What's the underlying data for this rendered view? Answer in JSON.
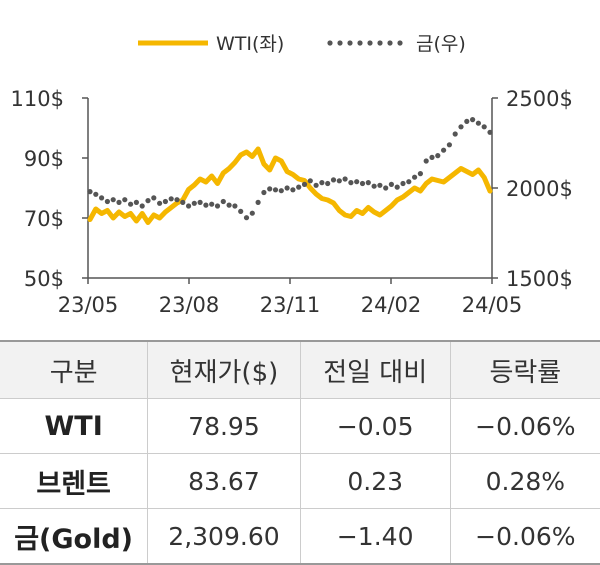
{
  "chart_data": {
    "type": "line",
    "x_ticks": [
      "23/05",
      "23/08",
      "23/11",
      "24/02",
      "24/05"
    ],
    "left_axis": {
      "ticks": [
        "110$",
        "90$",
        "70$",
        "50$"
      ],
      "range": [
        50,
        110
      ]
    },
    "right_axis": {
      "ticks": [
        "2500$",
        "2000$",
        "1500$"
      ],
      "range": [
        1500,
        2500
      ]
    },
    "legend_position": "top",
    "series": [
      {
        "name": "WTI(좌)",
        "axis": "left",
        "color": "#F5B700",
        "style": "solid",
        "values": [
          69.5,
          73.0,
          71.5,
          72.5,
          70.0,
          72.0,
          70.5,
          71.5,
          69.0,
          71.5,
          68.5,
          71.0,
          70.0,
          72.0,
          73.5,
          75.0,
          76.0,
          79.5,
          81.0,
          83.0,
          82.0,
          84.0,
          81.5,
          85.0,
          86.5,
          88.5,
          91.0,
          92.0,
          90.5,
          93.0,
          88.0,
          86.0,
          90.0,
          89.0,
          85.5,
          84.5,
          83.0,
          82.5,
          80.0,
          78.0,
          76.5,
          76.0,
          75.0,
          72.5,
          71.0,
          70.5,
          72.5,
          71.5,
          73.5,
          72.0,
          71.0,
          72.5,
          74.0,
          76.0,
          77.0,
          78.5,
          80.0,
          79.0,
          81.5,
          83.0,
          82.5,
          82.0,
          83.5,
          85.0,
          86.5,
          85.5,
          84.5,
          86.0,
          83.5,
          78.95
        ]
      },
      {
        "name": "금(우)",
        "axis": "right",
        "color": "#555555",
        "style": "dotted",
        "values": [
          1980,
          1965,
          1945,
          1925,
          1935,
          1920,
          1935,
          1910,
          1920,
          1900,
          1930,
          1945,
          1915,
          1925,
          1940,
          1935,
          1920,
          1900,
          1915,
          1920,
          1905,
          1910,
          1900,
          1925,
          1905,
          1900,
          1870,
          1835,
          1860,
          1920,
          1975,
          1995,
          1990,
          1985,
          2000,
          1990,
          2005,
          2020,
          2040,
          2015,
          2030,
          2025,
          2045,
          2040,
          2050,
          2030,
          2035,
          2025,
          2030,
          2010,
          2015,
          2000,
          2020,
          2005,
          2025,
          2035,
          2060,
          2080,
          2150,
          2170,
          2180,
          2210,
          2240,
          2300,
          2340,
          2370,
          2380,
          2360,
          2340,
          2309.6
        ]
      }
    ]
  },
  "table": {
    "headers": [
      "구분",
      "현재가($)",
      "전일 대비",
      "등락률"
    ],
    "rows": [
      {
        "name": "WTI",
        "price": "78.95",
        "change": "−0.05",
        "rate": "−0.06%"
      },
      {
        "name": "브렌트",
        "price": "83.67",
        "change": "0.23",
        "rate": "0.28%"
      },
      {
        "name": "금(Gold)",
        "price": "2,309.60",
        "change": "−1.40",
        "rate": "−0.06%"
      }
    ]
  }
}
